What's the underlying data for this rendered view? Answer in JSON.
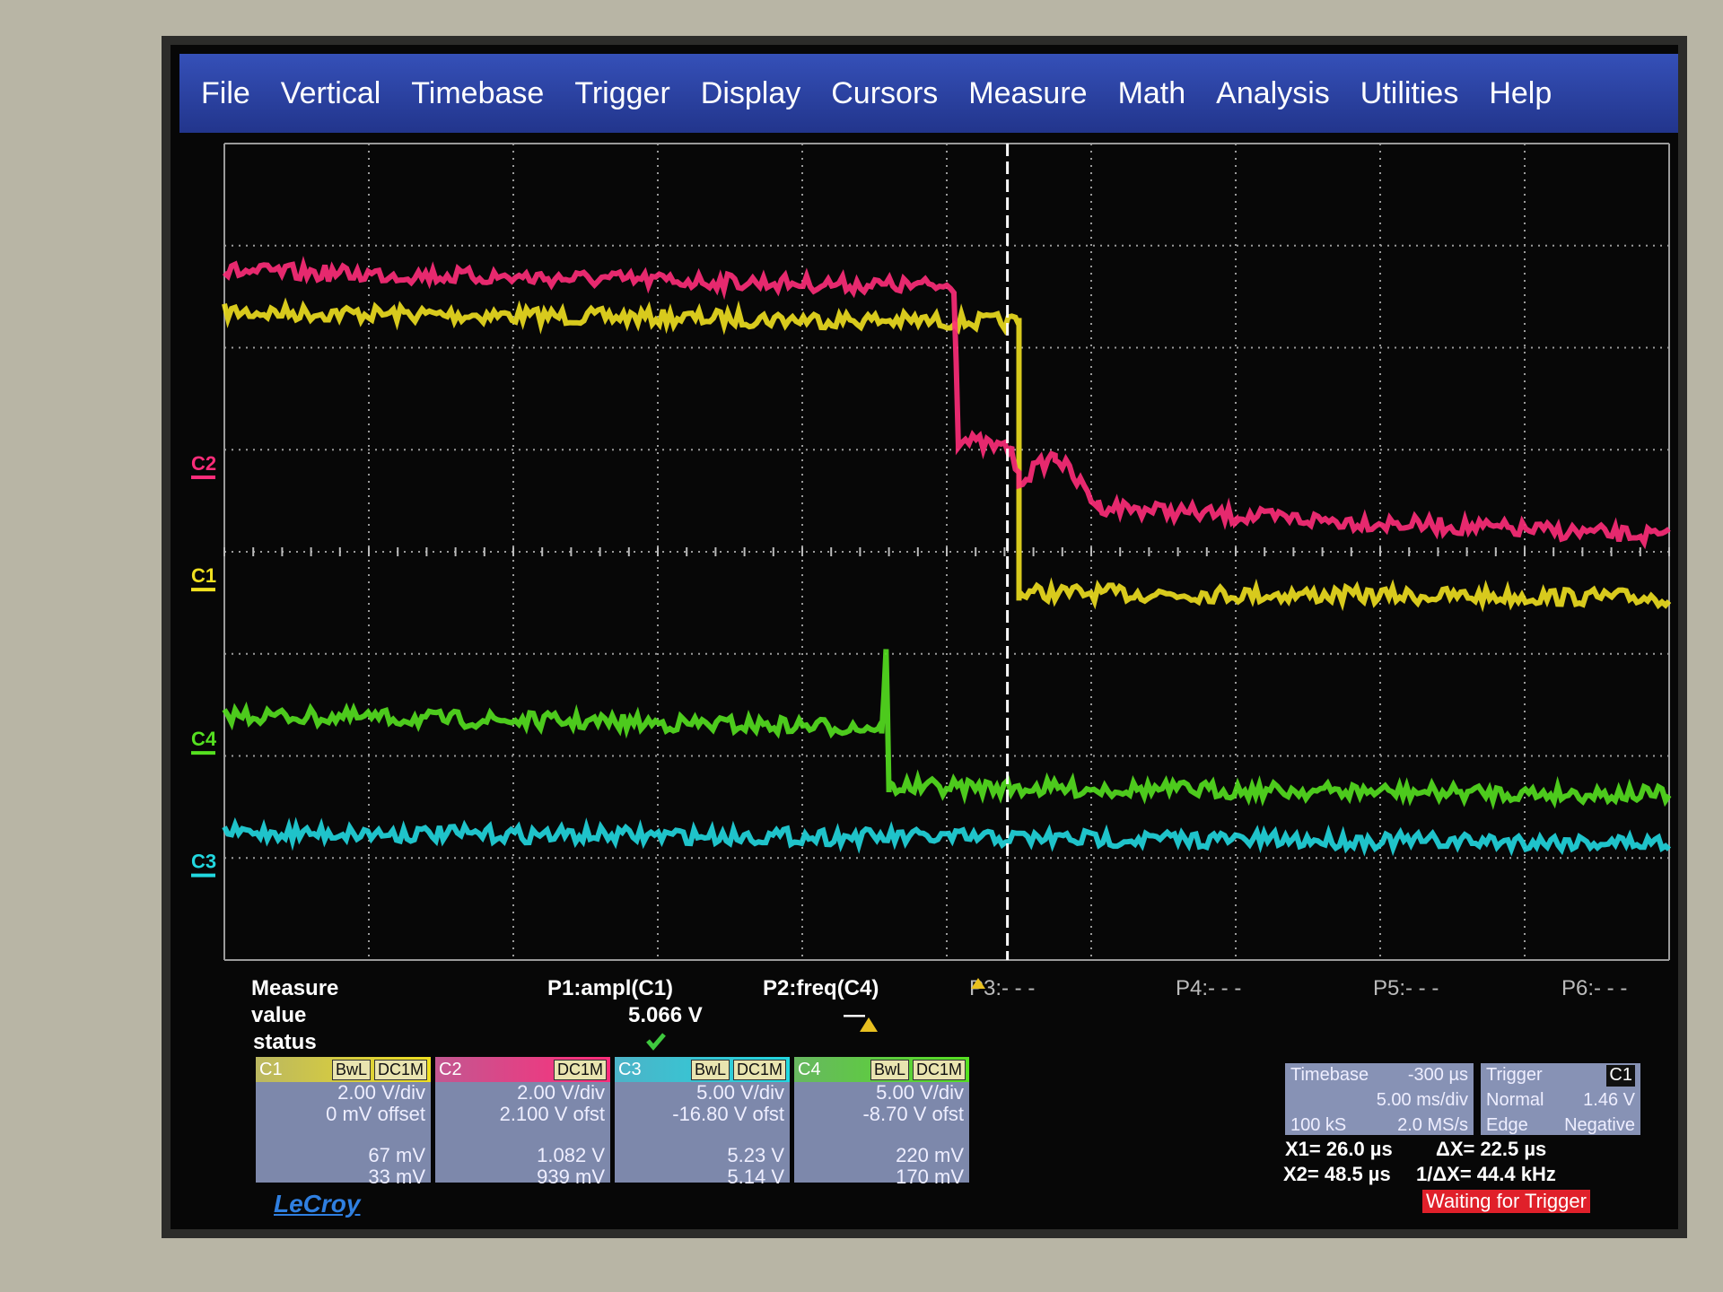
{
  "menu": [
    "File",
    "Vertical",
    "Timebase",
    "Trigger",
    "Display",
    "Cursors",
    "Measure",
    "Math",
    "Analysis",
    "Utilities",
    "Help"
  ],
  "trace_labels": [
    "C2",
    "C1",
    "C4",
    "C3"
  ],
  "measure": {
    "row_labels": [
      "Measure",
      "value",
      "status"
    ],
    "params": [
      {
        "name": "P1:ampl(C1)",
        "value": "5.066 V"
      },
      {
        "name": "P2:freq(C4)",
        "value": "—"
      },
      {
        "name": "P3:- - -"
      },
      {
        "name": "P4:- - -"
      },
      {
        "name": "P5:- - -"
      },
      {
        "name": "P6:- - -"
      }
    ]
  },
  "channels": [
    {
      "name": "C1",
      "tags": [
        "BwL",
        "DC1M"
      ],
      "scale": "2.00 V/div",
      "offset": "0 mV offset",
      "top": "67 mV",
      "bottom": "33 mV"
    },
    {
      "name": "C2",
      "tags": [
        "DC1M"
      ],
      "scale": "2.00 V/div",
      "offset": "2.100 V ofst",
      "top": "1.082 V",
      "bottom": "939 mV"
    },
    {
      "name": "C3",
      "tags": [
        "BwL",
        "DC1M"
      ],
      "scale": "5.00 V/div",
      "offset": "-16.80 V ofst",
      "top": "5.23 V",
      "bottom": "5.14 V"
    },
    {
      "name": "C4",
      "tags": [
        "BwL",
        "DC1M"
      ],
      "scale": "5.00 V/div",
      "offset": "-8.70 V ofst",
      "top": "220 mV",
      "bottom": "170 mV"
    }
  ],
  "timebase": {
    "label": "Timebase",
    "delay": "-300 µs",
    "scale": "5.00 ms/div",
    "samples": "100 kS",
    "rate": "2.0 MS/s"
  },
  "trigger": {
    "label": "Trigger",
    "source": "C1",
    "mode": "Normal",
    "level": "1.46 V",
    "type": "Edge",
    "slope": "Negative"
  },
  "cursors": {
    "x1": "X1= 26.0 µs",
    "dx": "ΔX= 22.5 µs",
    "x2": "X2= 48.5 µs",
    "inv_dx": "1/ΔX= 44.4 kHz"
  },
  "status": "Waiting for Trigger",
  "logo": "LeCroy"
}
